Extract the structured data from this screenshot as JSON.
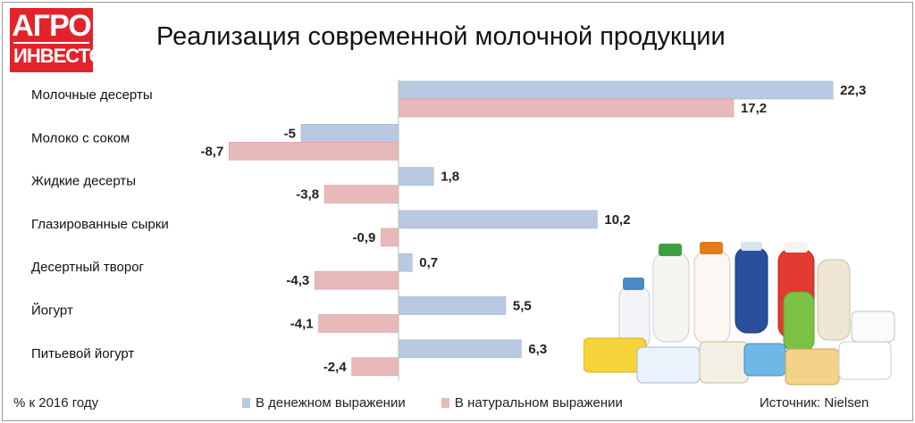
{
  "logo": {
    "line1": "АГРО",
    "line2": "ИНВЕСТОР"
  },
  "footnote": "% к 2016 году",
  "source": "Источник: Nielsen",
  "chart_data": {
    "type": "bar",
    "orientation": "horizontal",
    "title": "Реализация современной молочной продукции",
    "categories": [
      "Молочные десерты",
      "Молоко с соком",
      "Жидкие десерты",
      "Глазированные сырки",
      "Десертный творог",
      "Йогурт",
      "Питьевой йогурт"
    ],
    "series": [
      {
        "name": "В денежном выражении",
        "color": "#b8c9e1",
        "values": [
          22.3,
          -5,
          1.8,
          10.2,
          0.7,
          5.5,
          6.3
        ],
        "labels": [
          "22,3",
          "-5",
          "1,8",
          "10,2",
          "0,7",
          "5,5",
          "6,3"
        ]
      },
      {
        "name": "В натуральном выражении",
        "color": "#e8b9b9",
        "values": [
          17.2,
          -8.7,
          -3.8,
          -0.9,
          -4.3,
          -4.1,
          -2.4
        ],
        "labels": [
          "17,2",
          "-8,7",
          "-3,8",
          "-0,9",
          "-4,3",
          "-4,1",
          "-2,4"
        ]
      }
    ],
    "xlim": [
      -9,
      22.3
    ],
    "grid": false,
    "legend_position": "bottom"
  }
}
